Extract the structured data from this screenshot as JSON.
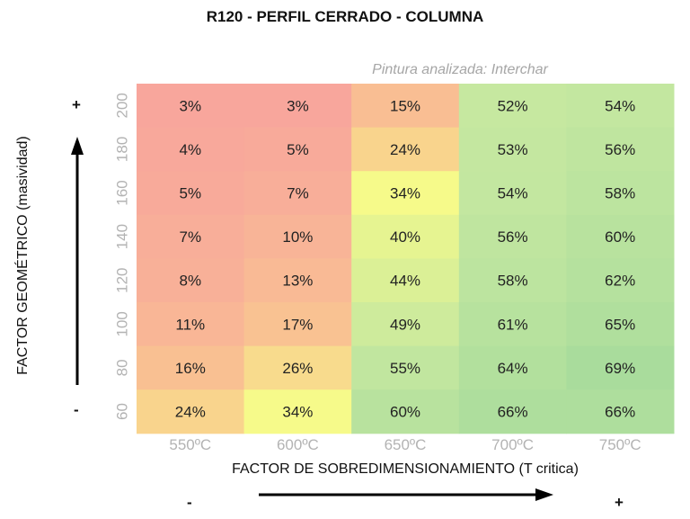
{
  "title": "R120 - PERFIL CERRADO - COLUMNA",
  "subtitle": "Pintura analizada: Interchar",
  "signs": {
    "y_top": "+",
    "y_bottom": "-",
    "x_left": "-",
    "x_right": "+"
  },
  "chart_data": {
    "type": "heatmap",
    "title": "R120 - PERFIL CERRADO - COLUMNA",
    "subtitle": "Pintura analizada: Interchar",
    "xlabel": "FACTOR DE SOBREDIMENSIONAMIENTO (T critica)",
    "ylabel": "FACTOR GEOMÉTRICO (masividad)",
    "x_categories": [
      "550ºC",
      "600ºC",
      "650ºC",
      "700ºC",
      "750ºC"
    ],
    "y_categories": [
      "200",
      "180",
      "160",
      "140",
      "120",
      "100",
      "80",
      "60"
    ],
    "values": [
      [
        3,
        3,
        15,
        52,
        54
      ],
      [
        4,
        5,
        24,
        53,
        56
      ],
      [
        5,
        7,
        34,
        54,
        58
      ],
      [
        7,
        10,
        40,
        56,
        60
      ],
      [
        8,
        13,
        44,
        58,
        62
      ],
      [
        11,
        17,
        49,
        61,
        65
      ],
      [
        16,
        26,
        55,
        64,
        69
      ],
      [
        24,
        34,
        60,
        66,
        66
      ]
    ],
    "value_suffix": "%",
    "colors": {
      "low": "#f8a09e",
      "lowmid": "#f9cc8e",
      "mid": "#f6fa8a",
      "highmid": "#c6e8a0",
      "high": "#a9dc9c"
    }
  }
}
